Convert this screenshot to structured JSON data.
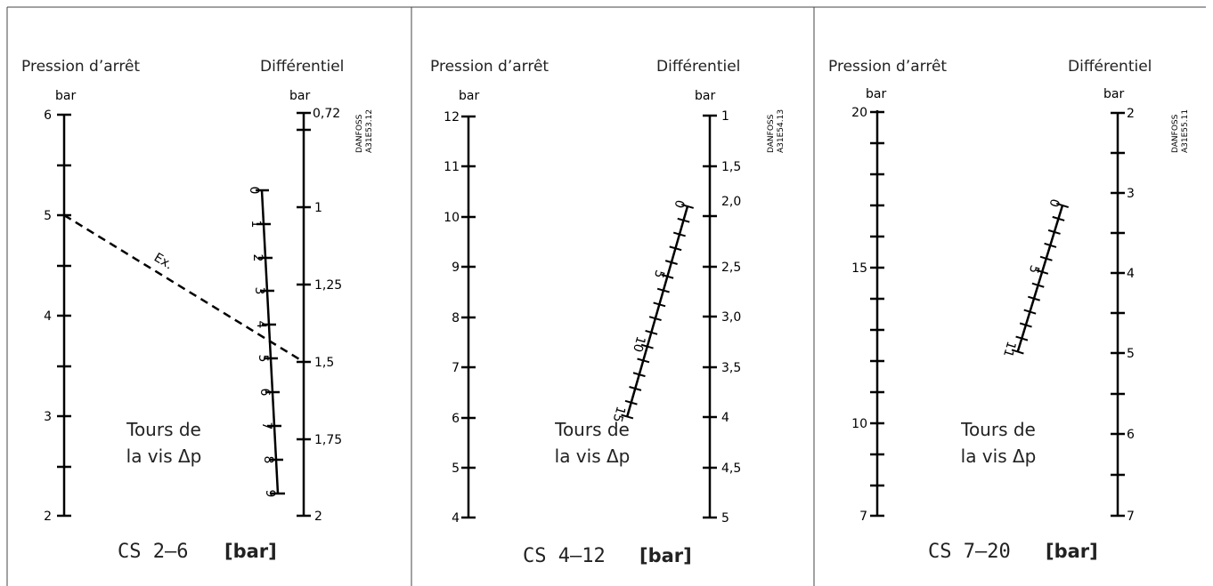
{
  "panels": [
    {
      "left_header": "Pression d’arrêt",
      "right_header": "Différentiel",
      "left_unit": "bar",
      "right_unit": "bar",
      "watermark": [
        "DANFOSS",
        "A31E53.12"
      ],
      "left_scale": {
        "min": 2,
        "max": 6,
        "labels": [
          "6",
          "5",
          "4",
          "3",
          "2"
        ]
      },
      "right_scale": {
        "labels": [
          "0,72",
          "1",
          "1,25",
          "1,5",
          "1,75",
          "2"
        ]
      },
      "turns_scale": {
        "labels": [
          "0",
          "1",
          "2",
          "3",
          "4",
          "5",
          "6",
          "7",
          "8",
          "9"
        ]
      },
      "example_label": "Ex.",
      "caption_label": [
        "Tours de",
        "la vis Δp"
      ],
      "title_code": "CS 2–6",
      "title_unit": "[bar]"
    },
    {
      "left_header": "Pression d’arrêt",
      "right_header": "Différentiel",
      "left_unit": "bar",
      "right_unit": "bar",
      "watermark": [
        "DANFOSS",
        "A31E54.13"
      ],
      "left_scale": {
        "min": 4,
        "max": 12,
        "labels": [
          "12",
          "11",
          "10",
          "9",
          "8",
          "7",
          "6",
          "5",
          "4"
        ]
      },
      "right_scale": {
        "labels": [
          "1",
          "1,5",
          "2,0",
          "2,5",
          "3,0",
          "3,5",
          "4",
          "4,5",
          "5"
        ]
      },
      "turns_scale": {
        "labels": [
          "0",
          "5",
          "10",
          "15"
        ]
      },
      "caption_label": [
        "Tours de",
        "la vis Δp"
      ],
      "title_code": "CS 4–12",
      "title_unit": "[bar]"
    },
    {
      "left_header": "Pression d’arrêt",
      "right_header": "Différentiel",
      "left_unit": "bar",
      "right_unit": "bar",
      "watermark": [
        "DANFOSS",
        "A31E55.11"
      ],
      "left_scale": {
        "min": 7,
        "max": 20,
        "labels": [
          "20",
          "15",
          "10",
          "7"
        ]
      },
      "right_scale": {
        "labels": [
          "2",
          "3",
          "4",
          "5",
          "6",
          "7"
        ]
      },
      "turns_scale": {
        "labels": [
          "0",
          "5",
          "11"
        ]
      },
      "caption_label": [
        "Tours de",
        "la vis Δp"
      ],
      "title_code": "CS 7–20",
      "title_unit": "[bar]"
    }
  ]
}
